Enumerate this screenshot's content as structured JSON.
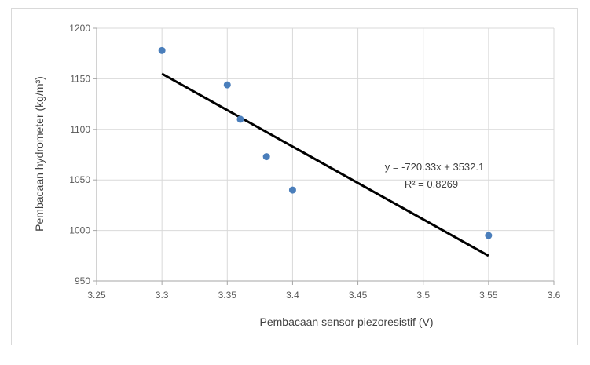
{
  "chart_data": {
    "type": "scatter",
    "title": "",
    "xlabel": "Pembacaan sensor piezoresistif (V)",
    "ylabel": "Pembacaan hydrometer (kg/m³)",
    "xlim": [
      3.25,
      3.6
    ],
    "ylim": [
      950,
      1200
    ],
    "x_ticks": [
      "3.25",
      "3.3",
      "3.35",
      "3.4",
      "3.45",
      "3.5",
      "3.55",
      "3.6"
    ],
    "y_ticks": [
      "950",
      "1000",
      "1050",
      "1100",
      "1150",
      "1200"
    ],
    "grid": "vertical and horizontal",
    "marker_color": "#4a7ebb",
    "series": [
      {
        "points": [
          {
            "x": 3.3,
            "y": 1178
          },
          {
            "x": 3.35,
            "y": 1144
          },
          {
            "x": 3.36,
            "y": 1110
          },
          {
            "x": 3.38,
            "y": 1073
          },
          {
            "x": 3.4,
            "y": 1040
          },
          {
            "x": 3.55,
            "y": 995
          }
        ]
      }
    ],
    "trendline": {
      "type": "linear",
      "slope": -720.33,
      "intercept": 3532.1,
      "x_range": [
        3.3,
        3.55
      ],
      "color": "#000000",
      "equation_label": "y = -720.33x + 3532.1",
      "r2_label": "R² = 0.8269"
    }
  }
}
